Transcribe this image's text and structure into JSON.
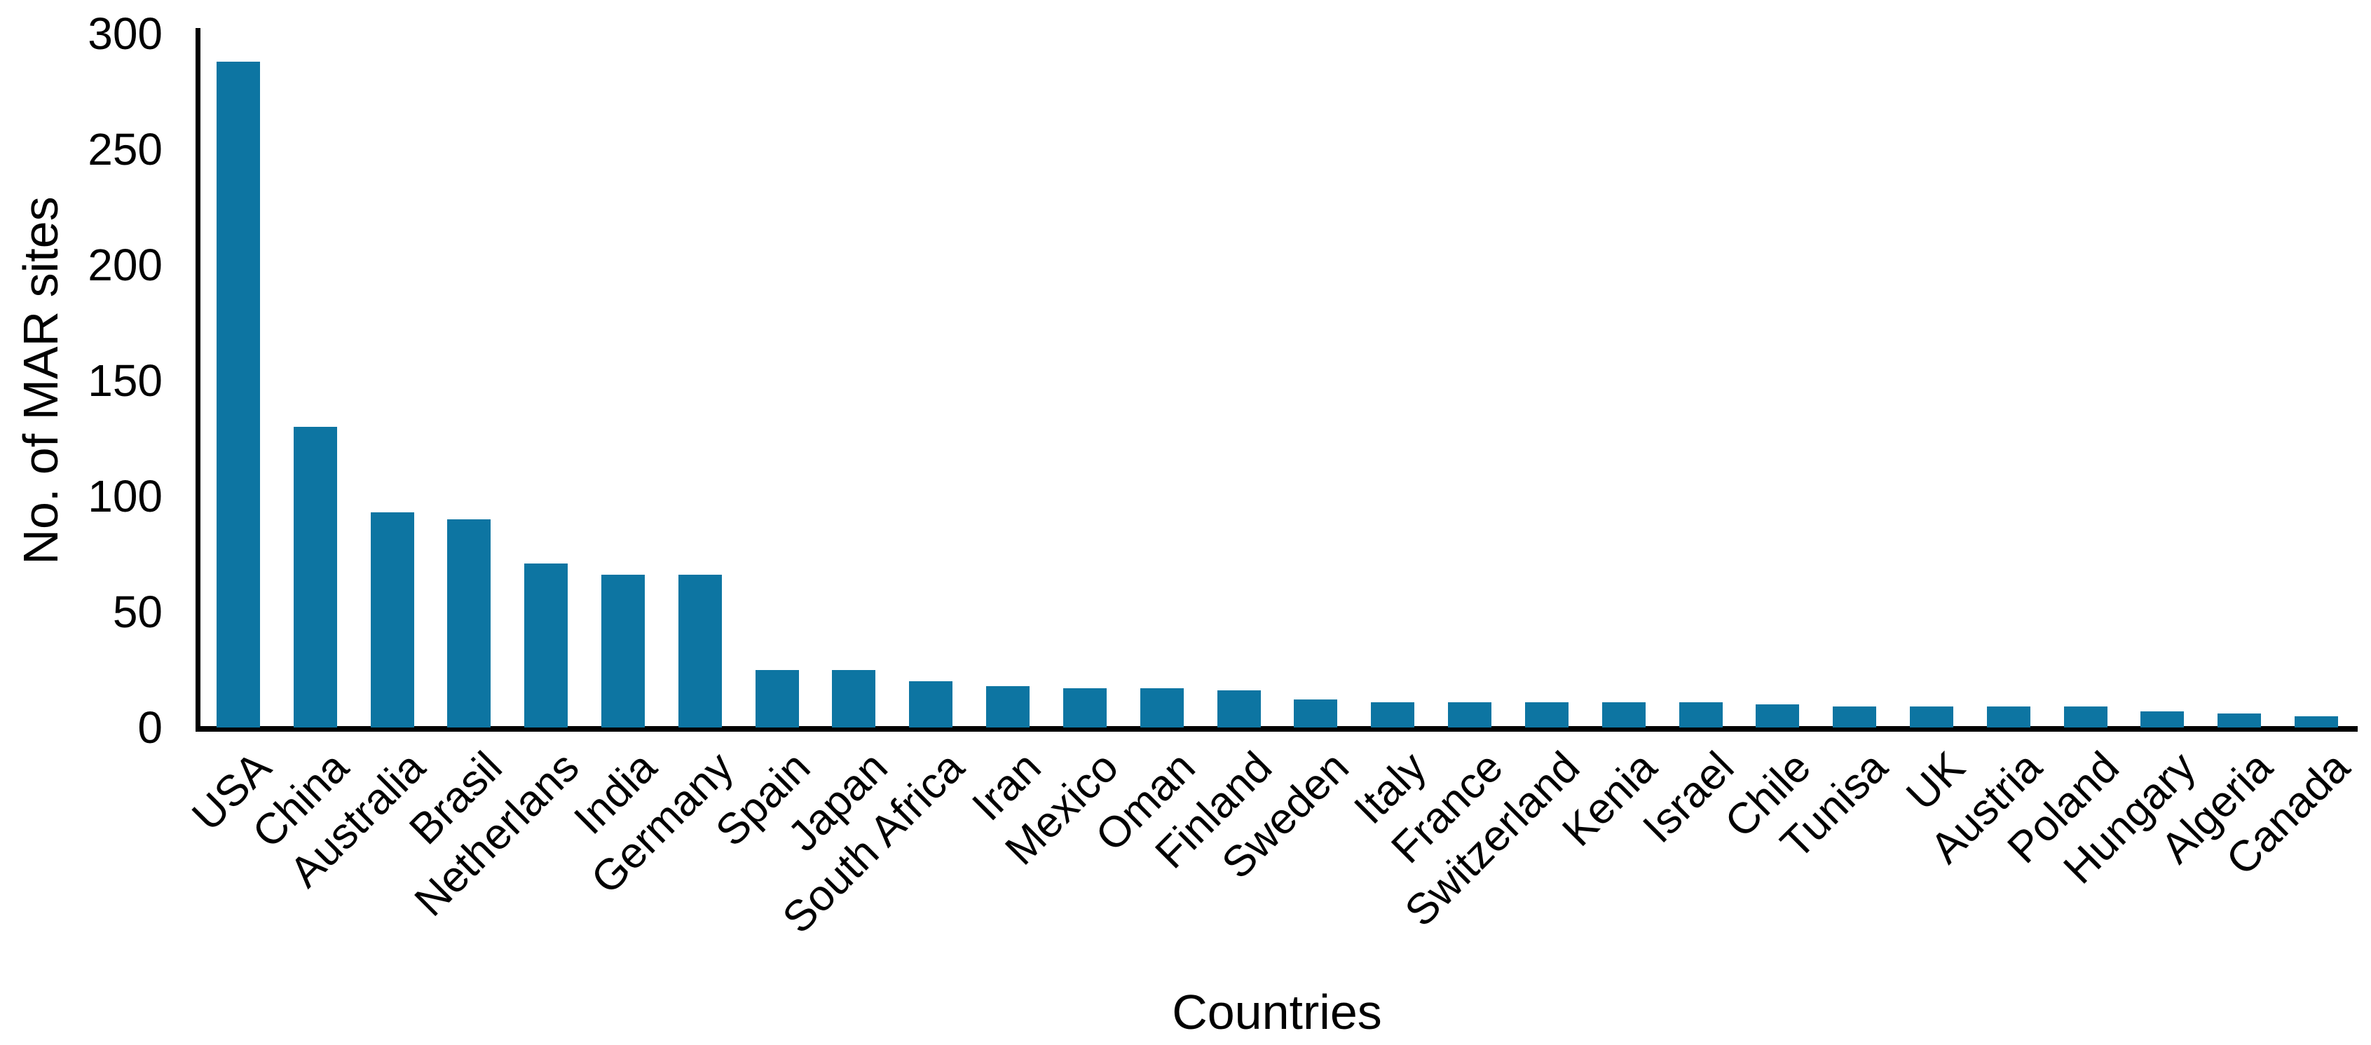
{
  "chart_data": {
    "type": "bar",
    "title": "",
    "xlabel": "Countries",
    "ylabel": "No. of MAR sites",
    "categories": [
      "USA",
      "China",
      "Australia",
      "Brasil",
      "Netherlans",
      "India",
      "Germany",
      "Spain",
      "Japan",
      "South Africa",
      "Iran",
      "Mexico",
      "Oman",
      "Finland",
      "Sweden",
      "Italy",
      "France",
      "Switzerland",
      "Kenia",
      "Israel",
      "Chile",
      "Tunisa",
      "UK",
      "Austria",
      "Poland",
      "Hungary",
      "Algeria",
      "Canada"
    ],
    "values": [
      288,
      130,
      93,
      90,
      71,
      66,
      66,
      25,
      25,
      20,
      18,
      17,
      17,
      16,
      12,
      11,
      11,
      11,
      11,
      11,
      10,
      9,
      9,
      9,
      9,
      7,
      6,
      5
    ],
    "ylim": [
      0,
      300
    ],
    "yticks": [
      0,
      50,
      100,
      150,
      200,
      250,
      300
    ],
    "grid": false,
    "legend": "none",
    "bar_color": "#0d75a2",
    "axis_color": "#000000"
  }
}
